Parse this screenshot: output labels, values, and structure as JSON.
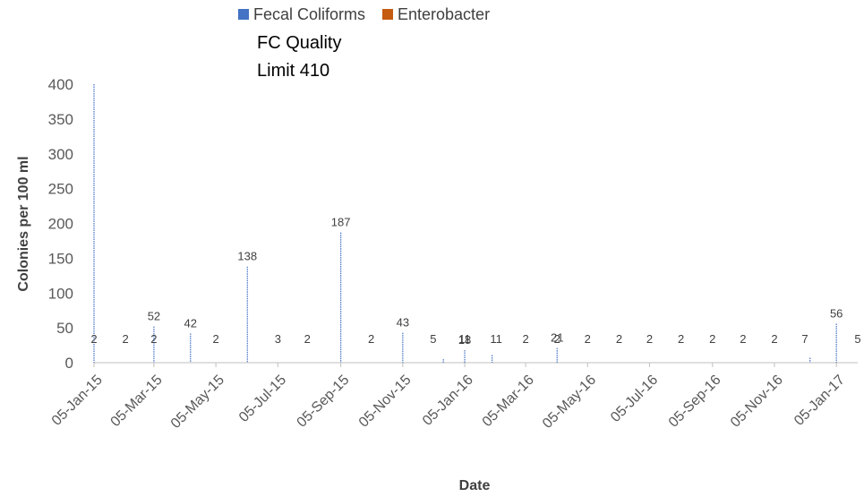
{
  "chart_data": {
    "type": "bar",
    "xlabel": "Date",
    "ylabel": "Colonies per 100 ml",
    "ylim": [
      0,
      400
    ],
    "y_ticks": [
      0,
      50,
      100,
      150,
      200,
      250,
      300,
      350,
      400
    ],
    "x_range": [
      "2015-01-05",
      "2017-01-26"
    ],
    "x_ticks": [
      {
        "date": "2015-01-05",
        "label": "05-Jan-15"
      },
      {
        "date": "2015-03-05",
        "label": "05-Mar-15"
      },
      {
        "date": "2015-05-05",
        "label": "05-May-15"
      },
      {
        "date": "2015-07-05",
        "label": "05-Jul-15"
      },
      {
        "date": "2015-09-05",
        "label": "05-Sep-15"
      },
      {
        "date": "2015-11-05",
        "label": "05-Nov-15"
      },
      {
        "date": "2016-01-05",
        "label": "05-Jan-16"
      },
      {
        "date": "2016-03-05",
        "label": "05-Mar-16"
      },
      {
        "date": "2016-05-05",
        "label": "05-May-16"
      },
      {
        "date": "2016-07-05",
        "label": "05-Jul-16"
      },
      {
        "date": "2016-09-05",
        "label": "05-Sep-16"
      },
      {
        "date": "2016-11-05",
        "label": "05-Nov-16"
      },
      {
        "date": "2017-01-05",
        "label": "05-Jan-17"
      }
    ],
    "legend": {
      "position": "top",
      "entries": [
        "Fecal Coliforms",
        "Enterobacter"
      ]
    },
    "annotation": [
      "FC Quality",
      "Limit 410"
    ],
    "grid": false,
    "series": [
      {
        "name": "Fecal Coliforms",
        "color": "#4472C4",
        "points": [
          {
            "x": "2015-01-05",
            "y": 400
          },
          {
            "x": "2015-03-05",
            "y": 52
          },
          {
            "x": "2015-04-10",
            "y": 42
          },
          {
            "x": "2015-06-05",
            "y": 138
          },
          {
            "x": "2015-09-05",
            "y": 187
          },
          {
            "x": "2015-11-05",
            "y": 43
          },
          {
            "x": "2015-12-15",
            "y": 5
          },
          {
            "x": "2016-01-05",
            "y": 18
          },
          {
            "x": "2016-02-01",
            "y": 11
          },
          {
            "x": "2016-04-05",
            "y": 21
          },
          {
            "x": "2016-12-10",
            "y": 7
          },
          {
            "x": "2017-01-05",
            "y": 56
          }
        ]
      },
      {
        "name": "Enterobacter",
        "color": "#C55A11",
        "points": []
      }
    ],
    "data_labels": [
      {
        "x": "2015-01-05",
        "text": "2"
      },
      {
        "x": "2015-02-05",
        "text": "2"
      },
      {
        "x": "2015-03-05",
        "text": "2"
      },
      {
        "x": "2015-03-05",
        "text": "52",
        "above": 52
      },
      {
        "x": "2015-04-10",
        "text": "42",
        "above": 42
      },
      {
        "x": "2015-05-05",
        "text": "2"
      },
      {
        "x": "2015-06-05",
        "text": "138",
        "above": 138
      },
      {
        "x": "2015-07-05",
        "text": "3"
      },
      {
        "x": "2015-08-03",
        "text": "2"
      },
      {
        "x": "2015-09-05",
        "text": "187",
        "above": 187
      },
      {
        "x": "2015-10-05",
        "text": "2"
      },
      {
        "x": "2015-11-05",
        "text": "43",
        "above": 43
      },
      {
        "x": "2015-12-05",
        "text": "5"
      },
      {
        "x": "2016-01-05",
        "text": "11"
      },
      {
        "x": "2016-01-05",
        "text": "18",
        "above": 18
      },
      {
        "x": "2016-02-05",
        "text": "11"
      },
      {
        "x": "2016-03-05",
        "text": "2"
      },
      {
        "x": "2016-04-05",
        "text": "2"
      },
      {
        "x": "2016-04-05",
        "text": "21",
        "above": 21
      },
      {
        "x": "2016-05-05",
        "text": "2"
      },
      {
        "x": "2016-06-05",
        "text": "2"
      },
      {
        "x": "2016-07-05",
        "text": "2"
      },
      {
        "x": "2016-08-05",
        "text": "2"
      },
      {
        "x": "2016-09-05",
        "text": "2"
      },
      {
        "x": "2016-10-05",
        "text": "2"
      },
      {
        "x": "2016-11-05",
        "text": "2"
      },
      {
        "x": "2016-12-05",
        "text": "7"
      },
      {
        "x": "2017-01-05",
        "text": "56",
        "above": 56
      },
      {
        "x": "2017-01-26",
        "text": "5"
      }
    ]
  }
}
